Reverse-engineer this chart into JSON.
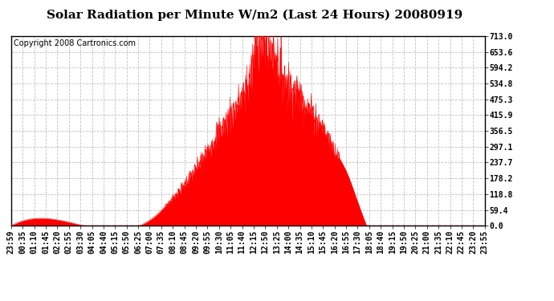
{
  "title": "Solar Radiation per Minute W/m2 (Last 24 Hours) 20080919",
  "copyright": "Copyright 2008 Cartronics.com",
  "yticks": [
    0.0,
    59.4,
    118.8,
    178.2,
    237.7,
    297.1,
    356.5,
    415.9,
    475.3,
    534.8,
    594.2,
    653.6,
    713.0
  ],
  "ymax": 713.0,
  "fill_color": "#ff0000",
  "line_color": "#ff0000",
  "background_color": "#ffffff",
  "plot_bg_color": "#ffffff",
  "grid_color": "#c0c0c0",
  "dashed_line_color": "#ff0000",
  "title_fontsize": 11,
  "copyright_fontsize": 7,
  "tick_label_fontsize": 7,
  "x_labels": [
    "23:59",
    "00:35",
    "01:10",
    "01:45",
    "02:20",
    "02:55",
    "03:30",
    "04:05",
    "04:40",
    "05:15",
    "05:50",
    "06:25",
    "07:00",
    "07:35",
    "08:10",
    "08:45",
    "09:20",
    "09:55",
    "10:30",
    "11:05",
    "11:40",
    "12:15",
    "12:50",
    "13:25",
    "14:00",
    "14:35",
    "15:10",
    "15:45",
    "16:20",
    "16:55",
    "17:30",
    "18:05",
    "18:40",
    "19:15",
    "19:50",
    "20:25",
    "21:00",
    "21:35",
    "22:10",
    "22:45",
    "23:20",
    "23:55"
  ],
  "n_minutes": 1440,
  "sunrise_minute": 390,
  "sunset_minute": 1080,
  "peak_minute": 750,
  "peak_value": 713.0
}
